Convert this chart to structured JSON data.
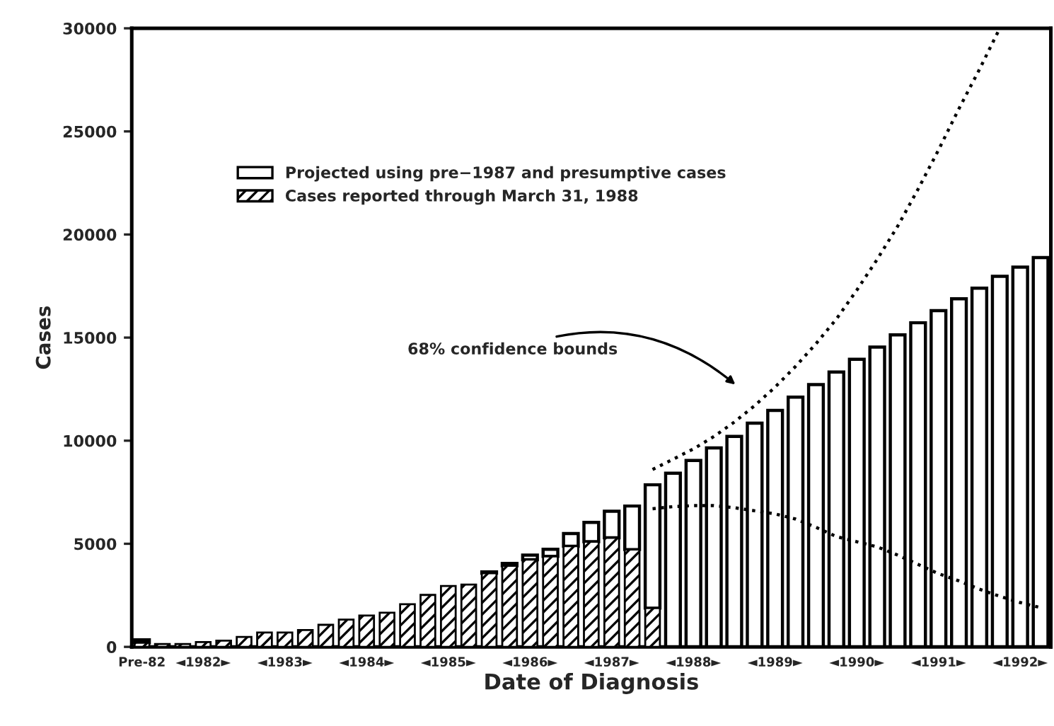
{
  "chart_data": {
    "type": "bar",
    "stacked": true,
    "xlabel": "Date of Diagnosis",
    "ylabel": "Cases",
    "categories": [
      "Pre-82",
      null,
      null,
      "◄1982►",
      null,
      null,
      null,
      "◄1983►",
      null,
      null,
      null,
      "◄1984►",
      null,
      null,
      null,
      "◄1985►",
      null,
      null,
      null,
      "◄1986►",
      null,
      null,
      null,
      "◄1987►",
      null,
      null,
      null,
      "◄1988►",
      null,
      null,
      null,
      "◄1989►",
      null,
      null,
      null,
      "◄1990►",
      null,
      null,
      null,
      "◄1991►",
      null,
      null,
      null,
      "◄1992►",
      null
    ],
    "series": [
      {
        "name": "Cases reported through March 31, 1988",
        "color": "#000000",
        "values": [
          200,
          140,
          140,
          230,
          300,
          480,
          700,
          700,
          820,
          1070,
          1320,
          1520,
          1660,
          2070,
          2520,
          2950,
          3020,
          3570,
          3930,
          4230,
          4390,
          4880,
          5100,
          5290,
          4720,
          1880,
          null,
          null,
          null,
          null,
          null,
          null,
          null,
          null,
          null,
          null,
          null,
          null,
          null,
          null,
          null,
          null,
          null,
          null,
          null
        ]
      },
      {
        "name": "Projected using pre−1987 and presumptive cases",
        "color": "#ffffff",
        "values": [
          140,
          null,
          null,
          null,
          null,
          null,
          null,
          null,
          null,
          null,
          null,
          null,
          null,
          null,
          null,
          null,
          null,
          70,
          120,
          220,
          340,
          620,
          940,
          1290,
          2110,
          5980,
          8420,
          9040,
          9650,
          10210,
          10850,
          11470,
          12110,
          12720,
          13330,
          13950,
          14540,
          15130,
          15720,
          16310,
          16880,
          17400,
          17970,
          18420,
          18880
        ]
      },
      {
        "type": "line",
        "color": "#000000",
        "line_style": "dotted",
        "values": [
          null,
          null,
          null,
          null,
          null,
          null,
          null,
          null,
          null,
          null,
          null,
          null,
          null,
          null,
          null,
          null,
          null,
          null,
          null,
          null,
          null,
          null,
          null,
          null,
          null,
          6700,
          6800,
          6850,
          6850,
          6750,
          6600,
          6450,
          6200,
          5800,
          5350,
          5100,
          4850,
          4450,
          4000,
          3550,
          3200,
          2800,
          2450,
          2150,
          1900
        ]
      },
      {
        "type": "line",
        "color": "#000000",
        "line_style": "dotted",
        "values": [
          null,
          null,
          null,
          null,
          null,
          null,
          null,
          null,
          null,
          null,
          null,
          null,
          null,
          null,
          null,
          null,
          null,
          null,
          null,
          null,
          null,
          null,
          null,
          null,
          null,
          8600,
          9100,
          9600,
          10200,
          10900,
          11700,
          12600,
          13600,
          14700,
          15900,
          17300,
          18800,
          20400,
          22200,
          24100,
          26100,
          28000,
          30000,
          null,
          null
        ]
      }
    ],
    "ylim": [
      0,
      30000
    ],
    "yticks": [
      0,
      5000,
      10000,
      15000,
      20000,
      25000,
      30000
    ],
    "annotations": [
      "68% confidence bounds"
    ],
    "legend": "top left",
    "grid": false
  }
}
